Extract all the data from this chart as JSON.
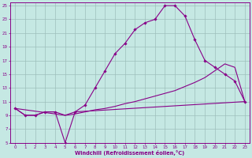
{
  "xlabel": "Windchill (Refroidissement éolien,°C)",
  "bg_color": "#c5e8e3",
  "line_color": "#880088",
  "grid_color": "#9dbfbb",
  "xlim_min": -0.5,
  "xlim_max": 23.5,
  "ylim_min": 5,
  "ylim_max": 25.5,
  "yticks": [
    5,
    7,
    9,
    11,
    13,
    15,
    17,
    19,
    21,
    23,
    25
  ],
  "xticks": [
    0,
    1,
    2,
    3,
    4,
    5,
    6,
    7,
    8,
    9,
    10,
    11,
    12,
    13,
    14,
    15,
    16,
    17,
    18,
    19,
    20,
    21,
    22,
    23
  ],
  "curve1_x": [
    0,
    1,
    2,
    3,
    4,
    5,
    6,
    7,
    8,
    9,
    10,
    11,
    12,
    13,
    14,
    15,
    16,
    17,
    18,
    19,
    20,
    21,
    22,
    23
  ],
  "curve1_y": [
    10.0,
    9.0,
    9.0,
    9.5,
    9.5,
    5.0,
    9.5,
    10.5,
    13.0,
    15.5,
    18.0,
    19.5,
    21.5,
    22.5,
    23.0,
    25.0,
    25.0,
    23.5,
    20.0,
    17.0,
    16.0,
    15.0,
    14.0,
    11.0
  ],
  "curve2_x": [
    0,
    1,
    2,
    3,
    4,
    5,
    6,
    7,
    8,
    9,
    10,
    11,
    12,
    13,
    14,
    15,
    16,
    17,
    18,
    19,
    20,
    21,
    22,
    23
  ],
  "curve2_y": [
    10.0,
    9.0,
    9.0,
    9.5,
    9.5,
    9.0,
    9.2,
    9.5,
    9.8,
    10.0,
    10.3,
    10.7,
    11.0,
    11.4,
    11.8,
    12.2,
    12.6,
    13.2,
    13.8,
    14.5,
    15.5,
    16.5,
    16.0,
    11.0
  ],
  "curve3_x": [
    0,
    5,
    6,
    23
  ],
  "curve3_y": [
    10.0,
    9.0,
    9.5,
    11.0
  ]
}
